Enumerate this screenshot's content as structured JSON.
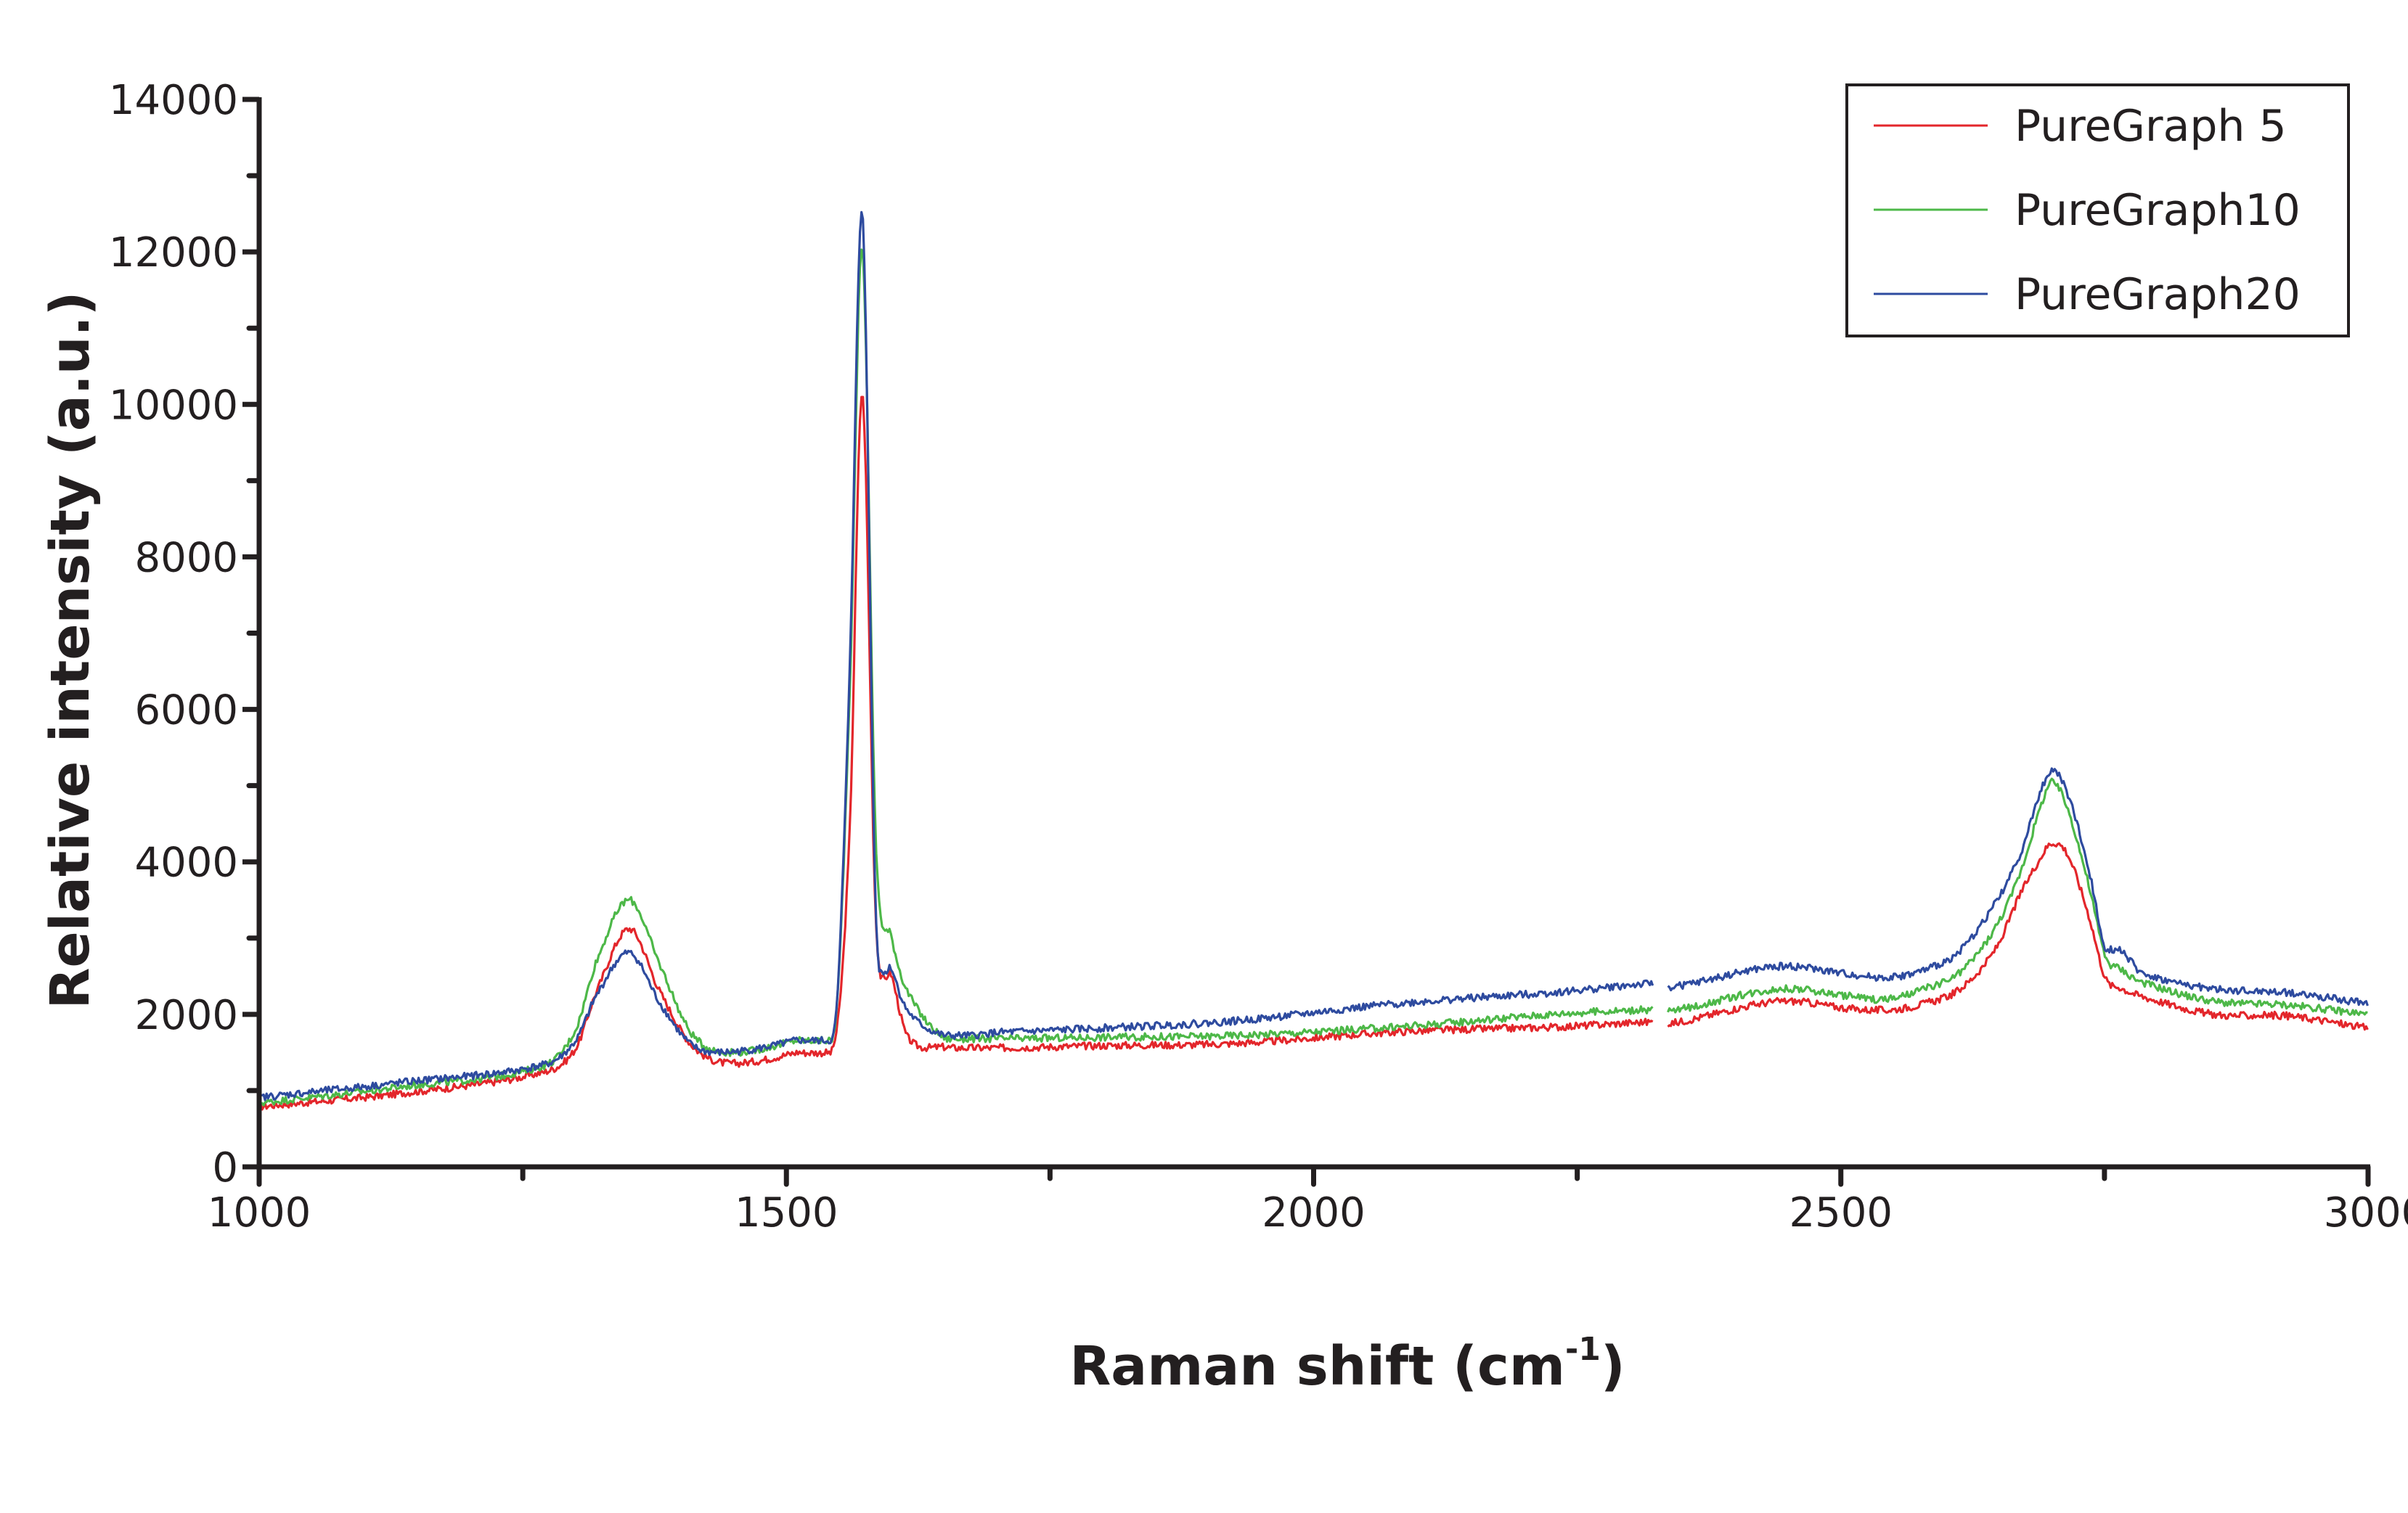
{
  "chart_data": {
    "type": "line",
    "title": "",
    "xlabel": "Raman shift (cm-1)",
    "xlabel_main": "Raman shift (cm",
    "xlabel_sup": "-1",
    "xlabel_close": ")",
    "ylabel": "Relative intensity (a.u.)",
    "xlim": [
      1000,
      3000
    ],
    "ylim": [
      0,
      14000
    ],
    "x_ticks": [
      1000,
      1500,
      2000,
      2500,
      3000
    ],
    "x_tick_labels": [
      "1000",
      "1500",
      "2000",
      "2500",
      "3000"
    ],
    "x_minor_ticks": [
      1250,
      1750,
      2250,
      2750
    ],
    "y_ticks": [
      0,
      2000,
      4000,
      6000,
      8000,
      10000,
      12000,
      14000
    ],
    "y_tick_labels": [
      "0",
      "2000",
      "4000",
      "6000",
      "8000",
      "10000",
      "12000",
      "14000"
    ],
    "y_minor_ticks": [
      1000,
      3000,
      5000,
      7000,
      9000,
      11000,
      13000
    ],
    "grid": false,
    "legend_position": "upper right",
    "gap": [
      2323,
      2336
    ],
    "x": [
      1000,
      1133,
      1271,
      1300,
      1320,
      1351,
      1380,
      1410,
      1443,
      1511,
      1546,
      1560,
      1572,
      1585,
      1600,
      1615,
      1650,
      1700,
      1800,
      1925,
      2080,
      2234,
      2320,
      2340,
      2441,
      2510,
      2544,
      2579,
      2613,
      2647,
      2670,
      2689,
      2700,
      2715,
      2735,
      2751,
      2765,
      2785,
      2854,
      2923,
      3000
    ],
    "series": [
      {
        "name": "PureGraph 5",
        "color": "#e3262b",
        "values": [
          790,
          961,
          1247,
          1550,
          2300,
          3122,
          2300,
          1600,
          1361,
          1504,
          1665,
          4400,
          10136,
          3200,
          2500,
          1700,
          1570,
          1560,
          1590,
          1618,
          1770,
          1837,
          1900,
          1884,
          2170,
          2075,
          2056,
          2141,
          2332,
          2865,
          3569,
          4045,
          4245,
          4100,
          3300,
          2474,
          2350,
          2237,
          1999,
          1980,
          1818
        ]
      },
      {
        "name": "PureGraph10",
        "color": "#4db848",
        "values": [
          838,
          1047,
          1332,
          1800,
          2700,
          3502,
          2650,
          1750,
          1504,
          1665,
          1856,
          6200,
          12050,
          4200,
          3000,
          2294,
          1694,
          1680,
          1700,
          1723,
          1837,
          2008,
          2060,
          2046,
          2332,
          2237,
          2199,
          2332,
          2551,
          3150,
          3855,
          4700,
          5044,
          4700,
          3700,
          2760,
          2600,
          2427,
          2170,
          2122,
          1999
        ]
      },
      {
        "name": "PureGraph20",
        "color": "#2e4b9f",
        "values": [
          910,
          1104,
          1342,
          1650,
          2250,
          2808,
          2150,
          1600,
          1504,
          1665,
          1856,
          6500,
          12515,
          3300,
          2600,
          2046,
          1723,
          1761,
          1820,
          1913,
          2141,
          2294,
          2400,
          2360,
          2627,
          2522,
          2484,
          2579,
          2836,
          3474,
          4102,
          4900,
          5197,
          4900,
          3900,
          2865,
          2855,
          2551,
          2332,
          2284,
          2141
        ]
      }
    ]
  },
  "legend": {
    "items": [
      {
        "label": "PureGraph 5",
        "color": "#e3262b"
      },
      {
        "label": "PureGraph10",
        "color": "#4db848"
      },
      {
        "label": "PureGraph20",
        "color": "#2e4b9f"
      }
    ]
  }
}
